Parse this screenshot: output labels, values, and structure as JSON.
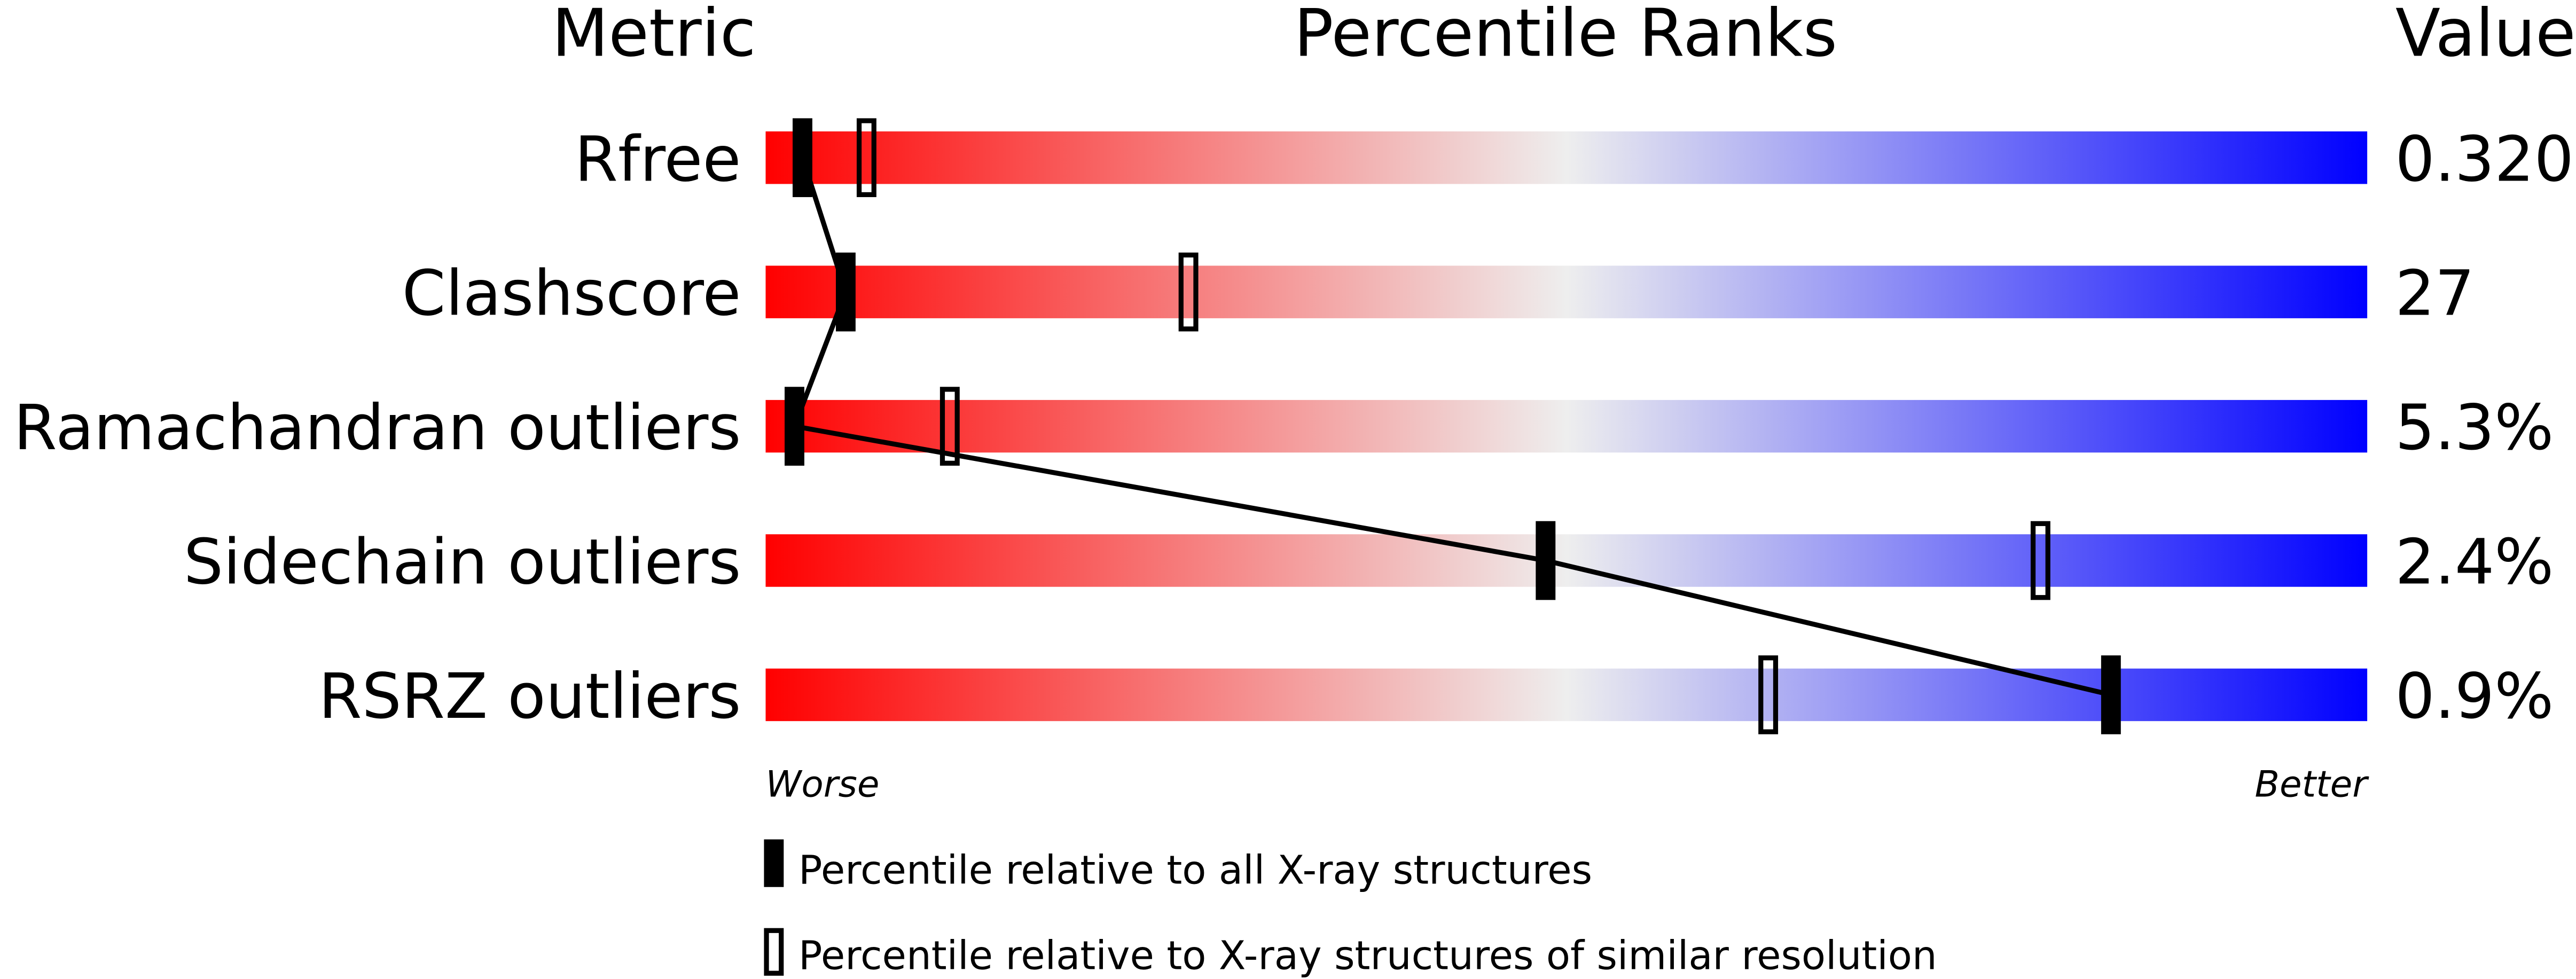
{
  "chart_data": {
    "type": "percentile-slider",
    "headers": {
      "metric": "Metric",
      "ranks": "Percentile Ranks",
      "value": "Value"
    },
    "xlim": [
      0,
      100
    ],
    "axis_labels": {
      "left": "Worse",
      "right": "Better"
    },
    "gradient_colors": [
      "#ff0000",
      "#eeeeee",
      "#0000ff"
    ],
    "rows": [
      {
        "metric": "Rfree",
        "value": "0.320",
        "percentile_all": 2.3,
        "percentile_similar": 6.3
      },
      {
        "metric": "Clashscore",
        "value": "27",
        "percentile_all": 5.0,
        "percentile_similar": 26.4
      },
      {
        "metric": "Ramachandran outliers",
        "value": "5.3%",
        "percentile_all": 1.8,
        "percentile_similar": 11.5
      },
      {
        "metric": "Sidechain outliers",
        "value": "2.4%",
        "percentile_all": 48.7,
        "percentile_similar": 79.6
      },
      {
        "metric": "RSRZ outliers",
        "value": "0.9%",
        "percentile_all": 84.0,
        "percentile_similar": 62.6
      }
    ],
    "legend": [
      {
        "marker": "filled",
        "label": "Percentile relative to all X-ray structures"
      },
      {
        "marker": "open",
        "label": "Percentile relative to X-ray structures of similar resolution"
      }
    ]
  }
}
